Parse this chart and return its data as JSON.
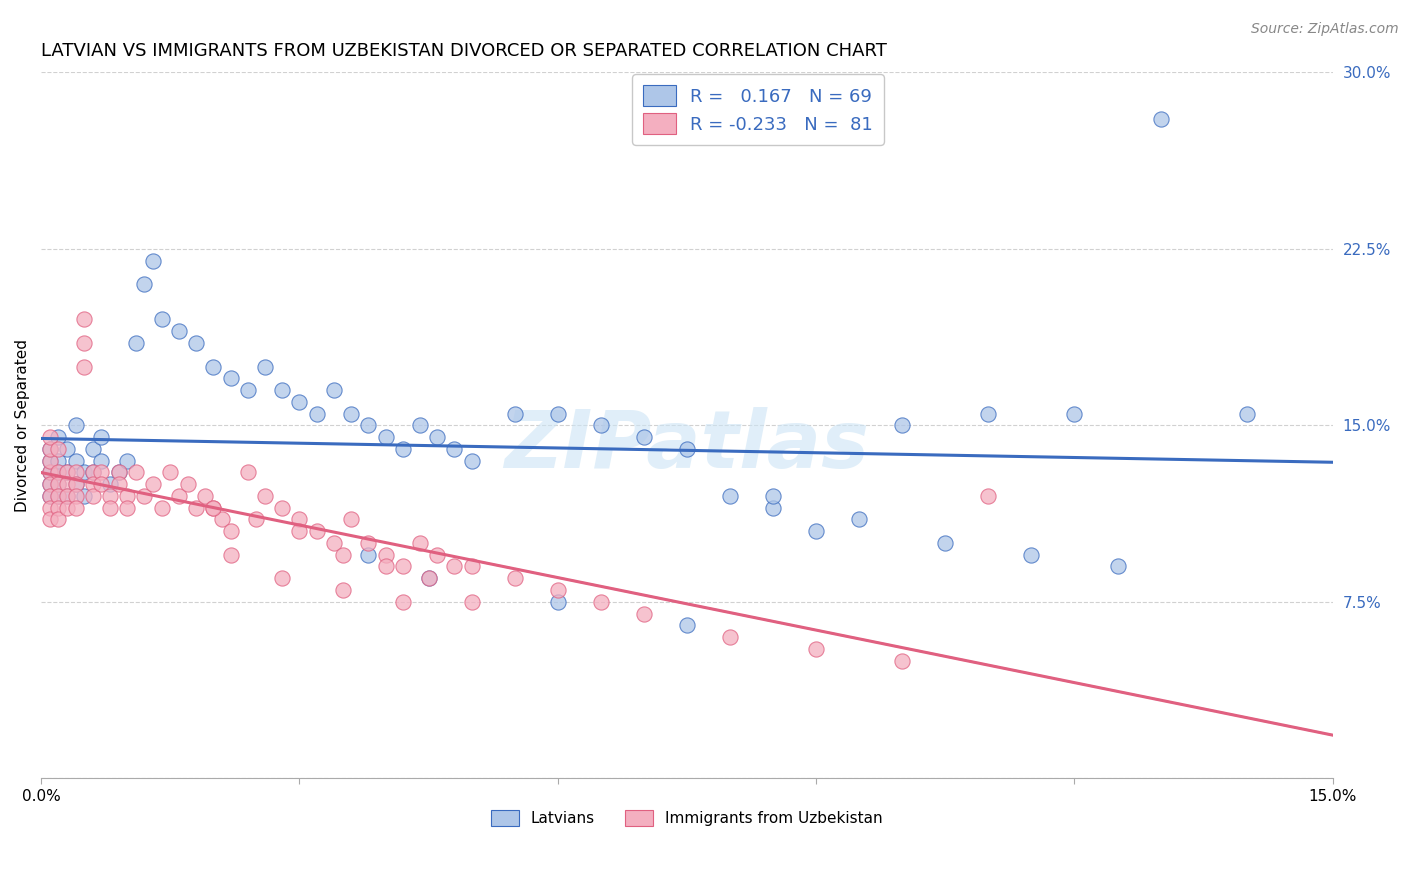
{
  "title": "LATVIAN VS IMMIGRANTS FROM UZBEKISTAN DIVORCED OR SEPARATED CORRELATION CHART",
  "source": "Source: ZipAtlas.com",
  "ylabel": "Divorced or Separated",
  "xlabel_latvians": "Latvians",
  "xlabel_uzbekistan": "Immigrants from Uzbekistan",
  "watermark": "ZIPatlas",
  "R_latvians": 0.167,
  "N_latvians": 69,
  "R_uzbekistan": -0.233,
  "N_uzbekistan": 81,
  "xmin": 0.0,
  "xmax": 0.15,
  "ymin": 0.0,
  "ymax": 0.3,
  "color_latvians": "#aec6e8",
  "color_uzbekistan": "#f4afc0",
  "line_color_latvians": "#3a6bbf",
  "line_color_uzbekistan": "#e06080",
  "line_color_uzb_dash": "#f0a0b0",
  "background_color": "#ffffff",
  "grid_color": "#cccccc",
  "title_fontsize": 13,
  "axis_label_fontsize": 11,
  "tick_fontsize": 11,
  "legend_fontsize": 13,
  "lat_x": [
    0.001,
    0.001,
    0.001,
    0.001,
    0.001,
    0.002,
    0.002,
    0.002,
    0.002,
    0.002,
    0.003,
    0.003,
    0.003,
    0.004,
    0.004,
    0.004,
    0.005,
    0.005,
    0.006,
    0.006,
    0.007,
    0.007,
    0.008,
    0.009,
    0.01,
    0.011,
    0.012,
    0.013,
    0.014,
    0.016,
    0.018,
    0.02,
    0.022,
    0.024,
    0.026,
    0.028,
    0.03,
    0.032,
    0.034,
    0.036,
    0.038,
    0.04,
    0.042,
    0.044,
    0.046,
    0.048,
    0.05,
    0.055,
    0.06,
    0.065,
    0.07,
    0.075,
    0.08,
    0.085,
    0.09,
    0.1,
    0.11,
    0.12,
    0.13,
    0.14,
    0.038,
    0.045,
    0.06,
    0.075,
    0.085,
    0.095,
    0.105,
    0.115,
    0.125
  ],
  "lat_y": [
    0.125,
    0.13,
    0.135,
    0.12,
    0.14,
    0.13,
    0.125,
    0.135,
    0.145,
    0.12,
    0.14,
    0.13,
    0.12,
    0.15,
    0.135,
    0.125,
    0.13,
    0.12,
    0.14,
    0.13,
    0.145,
    0.135,
    0.125,
    0.13,
    0.135,
    0.185,
    0.21,
    0.22,
    0.195,
    0.19,
    0.185,
    0.175,
    0.17,
    0.165,
    0.175,
    0.165,
    0.16,
    0.155,
    0.165,
    0.155,
    0.15,
    0.145,
    0.14,
    0.15,
    0.145,
    0.14,
    0.135,
    0.155,
    0.155,
    0.15,
    0.145,
    0.14,
    0.12,
    0.115,
    0.105,
    0.15,
    0.155,
    0.155,
    0.28,
    0.155,
    0.095,
    0.085,
    0.075,
    0.065,
    0.12,
    0.11,
    0.1,
    0.095,
    0.09
  ],
  "uzb_x": [
    0.001,
    0.001,
    0.001,
    0.001,
    0.001,
    0.001,
    0.001,
    0.001,
    0.002,
    0.002,
    0.002,
    0.002,
    0.002,
    0.002,
    0.003,
    0.003,
    0.003,
    0.003,
    0.004,
    0.004,
    0.004,
    0.004,
    0.005,
    0.005,
    0.005,
    0.006,
    0.006,
    0.006,
    0.007,
    0.007,
    0.008,
    0.008,
    0.009,
    0.009,
    0.01,
    0.01,
    0.011,
    0.012,
    0.013,
    0.014,
    0.015,
    0.016,
    0.017,
    0.018,
    0.019,
    0.02,
    0.021,
    0.022,
    0.024,
    0.026,
    0.028,
    0.03,
    0.032,
    0.034,
    0.036,
    0.038,
    0.04,
    0.042,
    0.044,
    0.046,
    0.048,
    0.05,
    0.055,
    0.06,
    0.065,
    0.07,
    0.08,
    0.09,
    0.1,
    0.11,
    0.02,
    0.025,
    0.03,
    0.035,
    0.04,
    0.045,
    0.05,
    0.022,
    0.028,
    0.035,
    0.042
  ],
  "uzb_y": [
    0.13,
    0.125,
    0.12,
    0.115,
    0.135,
    0.14,
    0.145,
    0.11,
    0.13,
    0.125,
    0.12,
    0.115,
    0.11,
    0.14,
    0.13,
    0.125,
    0.12,
    0.115,
    0.13,
    0.125,
    0.12,
    0.115,
    0.195,
    0.185,
    0.175,
    0.13,
    0.125,
    0.12,
    0.13,
    0.125,
    0.12,
    0.115,
    0.13,
    0.125,
    0.12,
    0.115,
    0.13,
    0.12,
    0.125,
    0.115,
    0.13,
    0.12,
    0.125,
    0.115,
    0.12,
    0.115,
    0.11,
    0.105,
    0.13,
    0.12,
    0.115,
    0.11,
    0.105,
    0.1,
    0.11,
    0.1,
    0.095,
    0.09,
    0.1,
    0.095,
    0.09,
    0.09,
    0.085,
    0.08,
    0.075,
    0.07,
    0.06,
    0.055,
    0.05,
    0.12,
    0.115,
    0.11,
    0.105,
    0.095,
    0.09,
    0.085,
    0.075,
    0.095,
    0.085,
    0.08,
    0.075
  ]
}
